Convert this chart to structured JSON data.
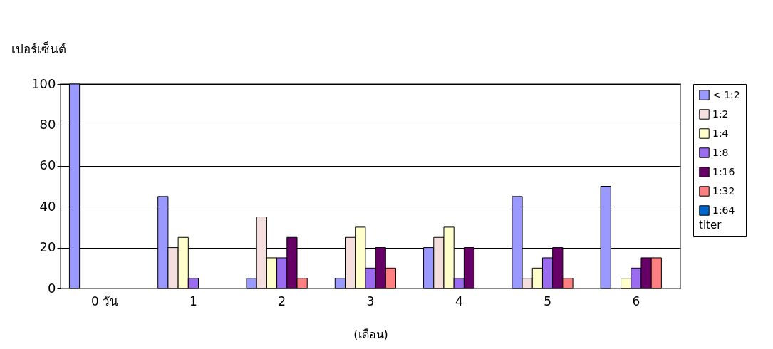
{
  "chart_data": {
    "type": "bar",
    "ylabel": "เปอร์เซ็นต์",
    "xlabel": "(เดือน)",
    "legend_title": "titer",
    "legend": "right",
    "grid": "y",
    "categories": [
      "0 วัน",
      "1",
      "2",
      "3",
      "4",
      "5",
      "6"
    ],
    "ylim": [
      0,
      100
    ],
    "yticks": [
      0,
      20,
      40,
      60,
      80,
      100
    ],
    "series": [
      {
        "name": "< 1:2",
        "color": "#9999ff",
        "values": [
          100,
          45,
          5,
          5,
          20,
          45,
          50
        ]
      },
      {
        "name": "1:2",
        "color": "#f4dede",
        "values": [
          0,
          20,
          35,
          25,
          25,
          5,
          0
        ]
      },
      {
        "name": "1:4",
        "color": "#ffffcc",
        "values": [
          0,
          25,
          15,
          30,
          30,
          10,
          5
        ]
      },
      {
        "name": "1:8",
        "color": "#9c6cf0",
        "values": [
          0,
          5,
          15,
          10,
          5,
          15,
          10
        ]
      },
      {
        "name": "1:16",
        "color": "#660066",
        "values": [
          0,
          0,
          25,
          20,
          20,
          20,
          15
        ]
      },
      {
        "name": "1:32",
        "color": "#ff8080",
        "values": [
          0,
          0,
          5,
          10,
          0,
          5,
          15
        ]
      },
      {
        "name": "1:64",
        "color": "#0066cc",
        "values": [
          0,
          0,
          0,
          0,
          0,
          0,
          0
        ]
      }
    ]
  }
}
